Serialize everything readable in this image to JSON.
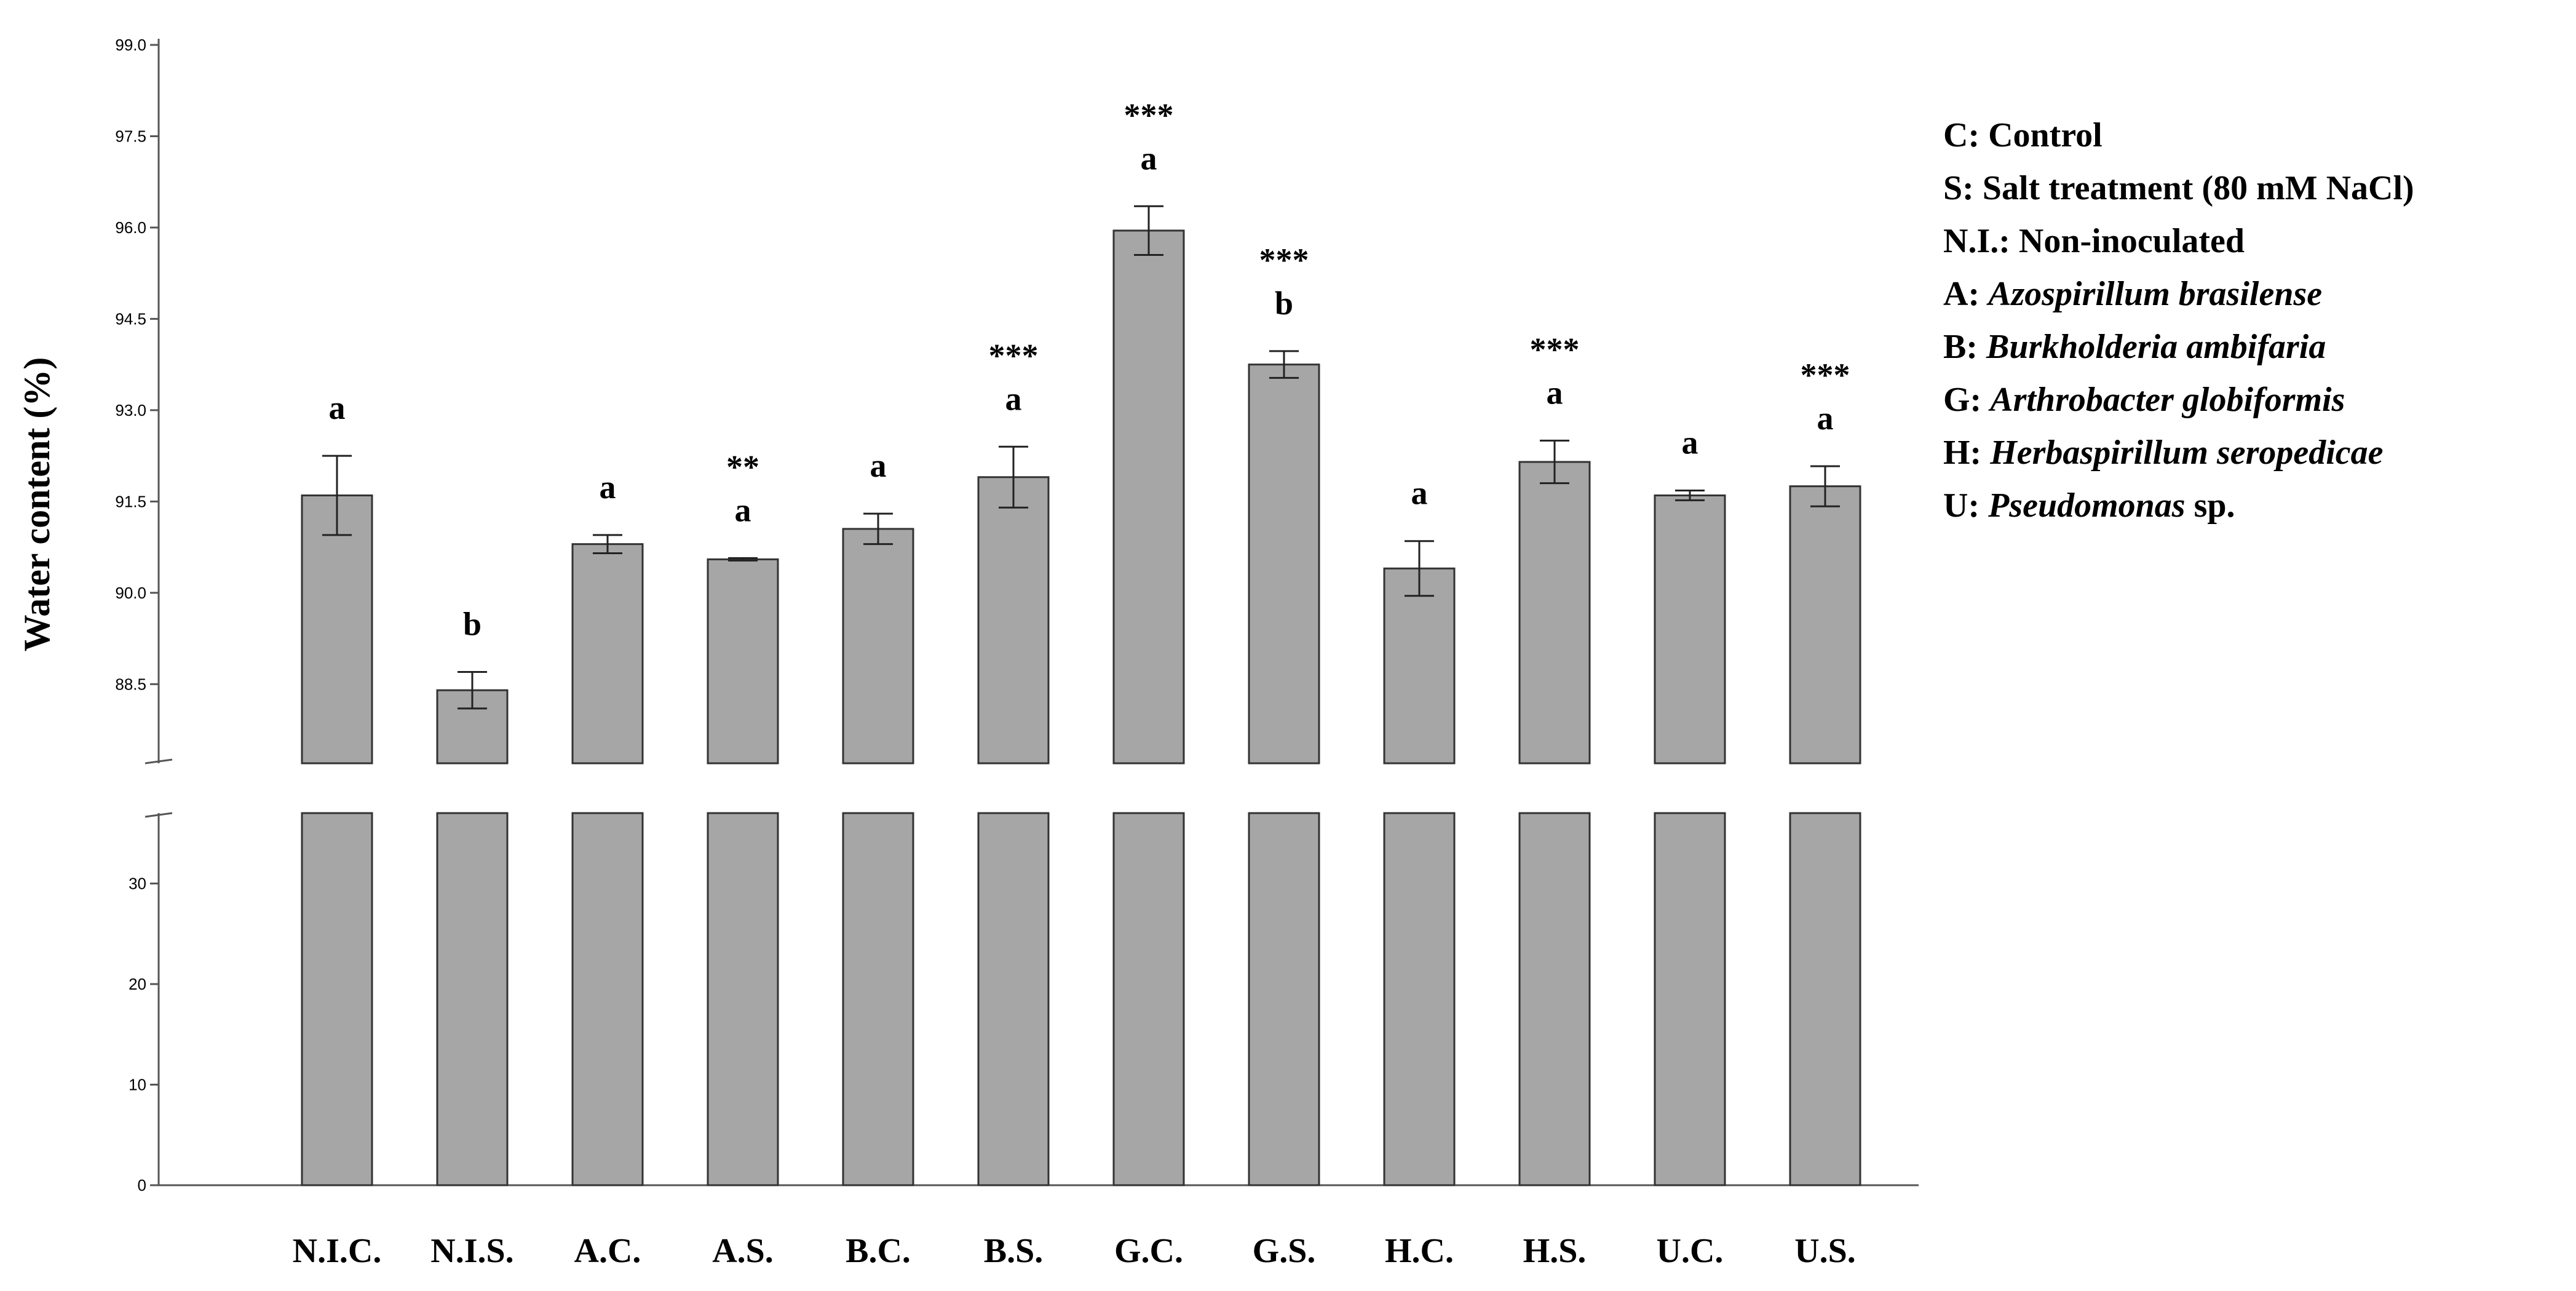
{
  "chart_data": {
    "type": "bar",
    "ylabel": "Water content (%)",
    "xlabel": "",
    "categories": [
      "N.I.C.",
      "N.I.S.",
      "A.C.",
      "A.S.",
      "B.C.",
      "B.S.",
      "G.C.",
      "G.S.",
      "H.C.",
      "H.S.",
      "U.C.",
      "U.S."
    ],
    "values": [
      91.6,
      88.4,
      90.8,
      90.55,
      91.05,
      91.9,
      95.95,
      93.75,
      90.4,
      92.15,
      91.6,
      91.75
    ],
    "errors": [
      0.65,
      0.3,
      0.15,
      0.02,
      0.25,
      0.5,
      0.4,
      0.22,
      0.45,
      0.35,
      0.08,
      0.33
    ],
    "letters": [
      "a",
      "b",
      "a",
      "a",
      "a",
      "a",
      "a",
      "b",
      "a",
      "a",
      "a",
      "a"
    ],
    "stars": [
      "",
      "",
      "",
      "**",
      "",
      "***",
      "***",
      "***",
      "",
      "***",
      "",
      "***"
    ],
    "broken_axis": {
      "lower": {
        "range": [
          0,
          37
        ],
        "ticks": [
          "0",
          "10",
          "20",
          "30"
        ]
      },
      "upper": {
        "range": [
          87.2,
          99.0
        ],
        "ticks": [
          "88.5",
          "90.0",
          "91.5",
          "93.0",
          "94.5",
          "96.0",
          "97.5",
          "99.0"
        ]
      }
    },
    "bar_color": "#a6a6a6",
    "legend": [
      {
        "key": "C:",
        "desc": "Control",
        "italic": false
      },
      {
        "key": "S:",
        "desc": "Salt treatment (80 mM NaCl)",
        "italic": false
      },
      {
        "key": "N.I.:",
        "desc": "Non-inoculated",
        "italic": false
      },
      {
        "key": "A:",
        "desc": "Azospirillum brasilense",
        "italic": true
      },
      {
        "key": "B:",
        "desc": "Burkholderia ambifaria",
        "italic": true
      },
      {
        "key": "G:",
        "desc": "Arthrobacter globiformis",
        "italic": true
      },
      {
        "key": "H:",
        "desc": "Herbaspirillum seropedicae",
        "italic": true
      },
      {
        "key": "U:",
        "desc": "Pseudomonas",
        "suffix": " sp.",
        "italic": true
      }
    ]
  }
}
